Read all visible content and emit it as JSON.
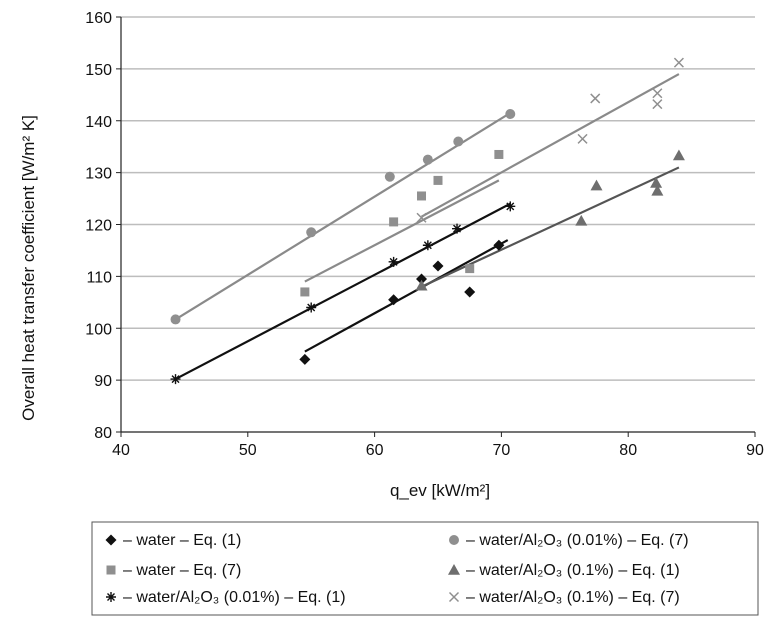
{
  "chart_data": {
    "type": "scatter",
    "xlabel": "q_ev  [kW/m²]",
    "ylabel": "Overall heat transfer coefficient [W/m² K]",
    "xlim": [
      40,
      90
    ],
    "ylim": [
      80,
      160
    ],
    "xticks": [
      40,
      50,
      60,
      70,
      80,
      90
    ],
    "yticks": [
      80,
      90,
      100,
      110,
      120,
      130,
      140,
      150,
      160
    ],
    "grid": "horizontal",
    "legend_position": "bottom",
    "series": [
      {
        "name": "– water – Eq. (1)",
        "marker": "diamond",
        "color": "#111111",
        "points": [
          [
            54.5,
            94
          ],
          [
            61.5,
            105.5
          ],
          [
            63.7,
            109.5
          ],
          [
            65,
            112
          ],
          [
            67.5,
            107
          ],
          [
            69.8,
            116
          ]
        ],
        "trend": [
          [
            54.5,
            95.5
          ],
          [
            70.5,
            117
          ]
        ]
      },
      {
        "name": "– water – Eq. (7)",
        "marker": "square",
        "color": "#8f8f8f",
        "points": [
          [
            54.5,
            107
          ],
          [
            61.5,
            120.5
          ],
          [
            63.7,
            125.5
          ],
          [
            65,
            128.5
          ],
          [
            67.5,
            111.5
          ],
          [
            69.8,
            133.5
          ]
        ],
        "trend": [
          [
            54.5,
            109
          ],
          [
            69.8,
            128.5
          ]
        ]
      },
      {
        "name": "– water/Al₂O₃ (0.01%) – Eq. (1)",
        "marker": "star",
        "color": "#111111",
        "points": [
          [
            44.3,
            90.2
          ],
          [
            55,
            104
          ],
          [
            61.5,
            112.8
          ],
          [
            64.2,
            116
          ],
          [
            66.5,
            119.2
          ],
          [
            70.7,
            123.5
          ]
        ],
        "trend": [
          [
            44.3,
            90.2
          ],
          [
            70.7,
            124
          ]
        ]
      },
      {
        "name": "– water/Al₂O₃ (0.01%) – Eq. (7)",
        "marker": "circle",
        "color": "#8f8f8f",
        "points": [
          [
            44.3,
            101.7
          ],
          [
            55,
            118.5
          ],
          [
            61.2,
            129.2
          ],
          [
            64.2,
            132.5
          ],
          [
            66.6,
            136
          ],
          [
            70.7,
            141.3
          ]
        ],
        "trend": [
          [
            44.3,
            101.7
          ],
          [
            70.7,
            141.5
          ]
        ]
      },
      {
        "name": "– water/Al₂O₃ (0.1%) – Eq. (1)",
        "marker": "triangle",
        "color": "#6e6e6e",
        "points": [
          [
            63.7,
            108.2
          ],
          [
            76.3,
            120.7
          ],
          [
            77.5,
            127.5
          ],
          [
            82.2,
            128
          ],
          [
            82.3,
            126.5
          ],
          [
            84,
            133.3
          ]
        ],
        "trend": [
          [
            63.7,
            108
          ],
          [
            84,
            131
          ]
        ]
      },
      {
        "name": "– water/Al₂O₃ (0.1%) – Eq. (7)",
        "marker": "x",
        "color": "#8f8f8f",
        "points": [
          [
            63.7,
            121.3
          ],
          [
            76.4,
            136.5
          ],
          [
            77.4,
            144.3
          ],
          [
            82.3,
            145.3
          ],
          [
            82.3,
            143.2
          ],
          [
            84,
            151.2
          ]
        ],
        "trend": [
          [
            63.7,
            121.5
          ],
          [
            84,
            149
          ]
        ]
      }
    ]
  }
}
